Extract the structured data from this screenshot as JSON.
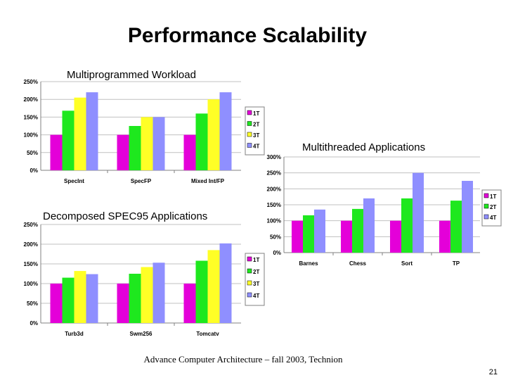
{
  "slide": {
    "title": "Performance Scalability",
    "footer": "Advance Computer Architecture – fall 2003, Technion",
    "page_number": "21"
  },
  "colors": {
    "1T": "#e400d9",
    "2T": "#1ee81e",
    "3T": "#ffff26",
    "4T": "#8f8fff"
  },
  "chart_data": [
    {
      "type": "bar",
      "title": "Multiprogrammed Workload",
      "categories": [
        "SpecInt",
        "SpecFP",
        "Mixed Int/FP"
      ],
      "series": [
        {
          "name": "1T",
          "values": [
            100,
            100,
            100
          ]
        },
        {
          "name": "2T",
          "values": [
            168,
            125,
            160
          ]
        },
        {
          "name": "3T",
          "values": [
            205,
            150,
            200
          ]
        },
        {
          "name": "4T",
          "values": [
            220,
            150,
            220
          ]
        }
      ],
      "ylim": [
        0,
        250
      ],
      "ticks": [
        "0%",
        "50%",
        "100%",
        "150%",
        "200%",
        "250%"
      ],
      "grid": true,
      "legend": "right"
    },
    {
      "type": "bar",
      "title": "Multithreaded Applications",
      "categories": [
        "Barnes",
        "Chess",
        "Sort",
        "TP"
      ],
      "series": [
        {
          "name": "1T",
          "values": [
            100,
            100,
            100,
            100
          ]
        },
        {
          "name": "2T",
          "values": [
            117,
            137,
            170,
            163
          ]
        },
        {
          "name": "4T",
          "values": [
            135,
            170,
            250,
            225
          ]
        }
      ],
      "ylim": [
        0,
        300
      ],
      "ticks": [
        "0%",
        "50%",
        "100%",
        "150%",
        "200%",
        "250%",
        "300%"
      ],
      "grid": true,
      "legend": "right"
    },
    {
      "type": "bar",
      "title": "Decomposed SPEC95 Applications",
      "categories": [
        "Turb3d",
        "Swm256",
        "Tomcatv"
      ],
      "series": [
        {
          "name": "1T",
          "values": [
            100,
            100,
            100
          ]
        },
        {
          "name": "2T",
          "values": [
            115,
            125,
            158
          ]
        },
        {
          "name": "3T",
          "values": [
            132,
            142,
            185
          ]
        },
        {
          "name": "4T",
          "values": [
            124,
            153,
            202
          ]
        }
      ],
      "ylim": [
        0,
        250
      ],
      "ticks": [
        "0%",
        "50%",
        "100%",
        "150%",
        "200%",
        "250%"
      ],
      "grid": true,
      "legend": "right"
    }
  ]
}
